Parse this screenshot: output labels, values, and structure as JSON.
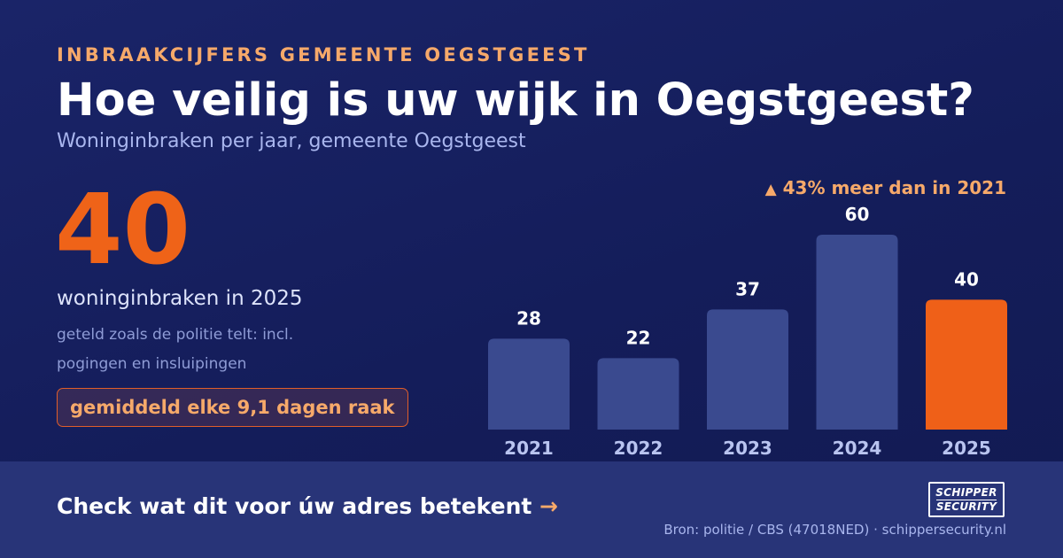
{
  "header": {
    "eyebrow": "INBRAAKCIJFERS GEMEENTE OEGSTGEEST",
    "title": "Hoe veilig is uw wijk in Oegstgeest?",
    "subtitle": "Woninginbraken per jaar, gemeente Oegstgeest"
  },
  "highlight": {
    "value": "40",
    "caption": "woninginbraken in 2025",
    "note": "geteld zoals de politie telt: incl. pogingen en insluipingen",
    "badge": "gemiddeld elke 9,1 dagen raak"
  },
  "trend": {
    "arrow": "▲",
    "text": "43% meer dan in 2021"
  },
  "chart_data": {
    "type": "bar",
    "categories": [
      "2021",
      "2022",
      "2023",
      "2024",
      "2025"
    ],
    "values": [
      28,
      22,
      37,
      60,
      40
    ],
    "ylim": [
      0,
      60
    ],
    "highlight_category": "2025",
    "colors": {
      "bar": "#3a4a8f",
      "highlight": "#ef6018",
      "value_label": "#ffffff",
      "category_label": "#b9c4f0"
    },
    "grid": false
  },
  "footer": {
    "cta": "Check wat dit voor úw adres betekent",
    "cta_arrow": "→",
    "logo_top": "SCHIPPER",
    "logo_bottom": "SECURITY",
    "source": "Bron: politie / CBS (47018NED) · schippersecurity.nl"
  },
  "colors": {
    "background": "#141d5a",
    "accent": "#ef6318",
    "accent_light": "#f6a96a",
    "footer": "#283478"
  }
}
